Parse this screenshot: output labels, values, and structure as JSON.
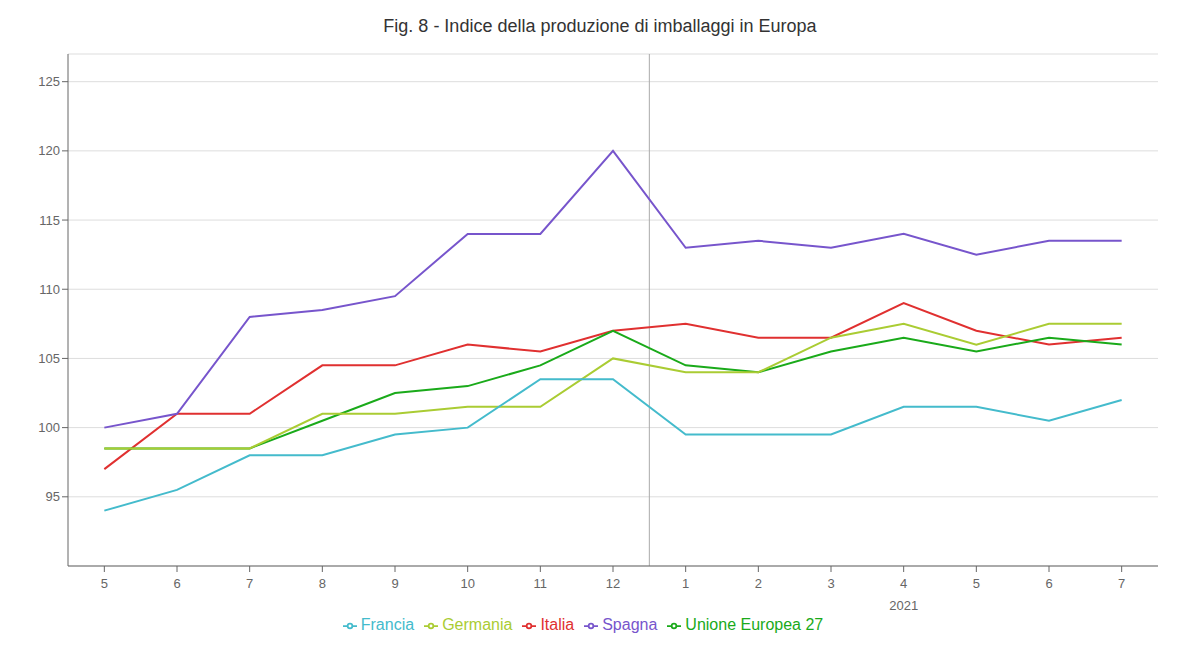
{
  "chart_data": {
    "type": "line",
    "title": "Fig. 8 - Indice della produzione di imballaggi in Europa",
    "categories": [
      "5",
      "6",
      "7",
      "8",
      "9",
      "10",
      "11",
      "12",
      "1",
      "2",
      "3",
      "4",
      "5",
      "6",
      "7"
    ],
    "series": [
      {
        "name": "Italia",
        "color": "#e03030",
        "values": [
          97.0,
          101.0,
          101.0,
          104.5,
          104.5,
          106.0,
          105.5,
          107.0,
          107.5,
          106.5,
          106.5,
          109.0,
          107.0,
          106.0,
          106.5
        ]
      },
      {
        "name": "Unione Europea 27",
        "color": "#1aaa1a",
        "values": [
          98.5,
          98.5,
          98.5,
          100.5,
          102.5,
          103.0,
          104.5,
          107.0,
          104.5,
          104.0,
          105.5,
          106.5,
          105.5,
          106.5,
          106.0
        ]
      },
      {
        "name": "Germania",
        "color": "#aacc33",
        "values": [
          98.5,
          98.5,
          98.5,
          101.0,
          101.0,
          101.5,
          101.5,
          105.0,
          104.0,
          104.0,
          106.5,
          107.5,
          106.0,
          107.5,
          107.5
        ]
      },
      {
        "name": "Spagna",
        "color": "#7755cc",
        "values": [
          100.0,
          101.0,
          108.0,
          108.5,
          109.5,
          114.0,
          114.0,
          120.0,
          113.0,
          113.5,
          113.0,
          114.0,
          112.5,
          113.5,
          113.5
        ]
      },
      {
        "name": "Francia",
        "color": "#44bbcc",
        "values": [
          94.0,
          95.5,
          98.0,
          98.0,
          99.5,
          100.0,
          103.5,
          103.5,
          99.5,
          99.5,
          99.5,
          101.5,
          101.5,
          100.5,
          102.0
        ]
      }
    ],
    "ylim": [
      90,
      127
    ],
    "yticks": [
      95,
      100,
      105,
      110,
      115,
      120,
      125
    ],
    "grid": true,
    "legend": "bottom",
    "annotations": [
      {
        "text": "2021"
      }
    ]
  }
}
